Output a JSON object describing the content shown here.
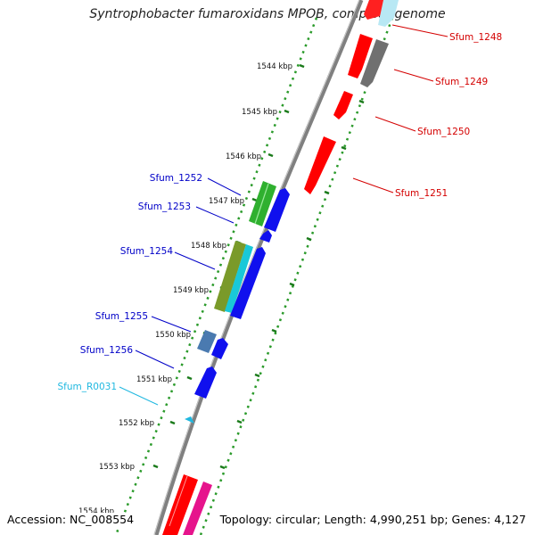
{
  "title": "Syntrophobacter fumaroxidans MPOB, complete genome",
  "footer": {
    "accession": "Accession: NC_008554",
    "summary": "Topology: circular; Length: 4,990,251 bp; Genes: 4,127"
  },
  "ticks": [
    {
      "label": "1544 kbp"
    },
    {
      "label": "1545 kbp"
    },
    {
      "label": "1546 kbp"
    },
    {
      "label": "1547 kbp"
    },
    {
      "label": "1548 kbp"
    },
    {
      "label": "1549 kbp"
    },
    {
      "label": "1550 kbp"
    },
    {
      "label": "1551 kbp"
    },
    {
      "label": "1552 kbp"
    },
    {
      "label": "1553 kbp"
    },
    {
      "label": "1554 kbp"
    }
  ],
  "labels_right": [
    {
      "text": "Sfum_1248",
      "color": "#d40000"
    },
    {
      "text": "Sfum_1249",
      "color": "#d40000"
    },
    {
      "text": "Sfum_1250",
      "color": "#d40000"
    },
    {
      "text": "Sfum_1251",
      "color": "#d40000"
    }
  ],
  "labels_left": [
    {
      "text": "Sfum_1252",
      "color": "#0000c8"
    },
    {
      "text": "Sfum_1253",
      "color": "#0000c8"
    },
    {
      "text": "Sfum_1254",
      "color": "#0000c8"
    },
    {
      "text": "Sfum_1255",
      "color": "#0000c8"
    },
    {
      "text": "Sfum_1256",
      "color": "#0000c8"
    },
    {
      "text": "Sfum_R0031",
      "color": "#20b8e0"
    }
  ]
}
